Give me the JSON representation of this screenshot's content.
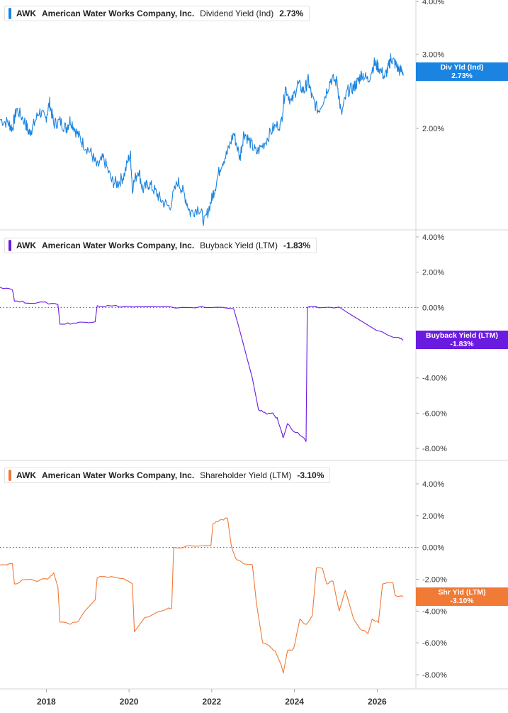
{
  "chart_data": [
    {
      "type": "line",
      "ticker": "AWK",
      "company": "American Water Works Company, Inc.",
      "metric": "Dividend Yield (Ind)",
      "current": "2.73%",
      "tag": [
        "Div Yld (Ind)",
        "2.73%"
      ],
      "color": "#1a84e0",
      "y_ticks": [
        "4.00%",
        "3.00%",
        "2.00%"
      ],
      "y_tick_values": [
        4,
        3,
        2
      ],
      "log_scale": true,
      "ylim": [
        1.1,
        4.0
      ],
      "points": [
        [
          2016.9,
          2.1
        ],
        [
          2017.1,
          2.06
        ],
        [
          2017.2,
          2.0
        ],
        [
          2017.3,
          2.22
        ],
        [
          2017.5,
          2.08
        ],
        [
          2017.6,
          1.95
        ],
        [
          2017.7,
          2.02
        ],
        [
          2017.85,
          2.2
        ],
        [
          2018.0,
          2.1
        ],
        [
          2018.1,
          2.3
        ],
        [
          2018.2,
          2.05
        ],
        [
          2018.35,
          2.08
        ],
        [
          2018.5,
          2.0
        ],
        [
          2018.6,
          2.1
        ],
        [
          2018.75,
          1.96
        ],
        [
          2018.9,
          1.85
        ],
        [
          2019.1,
          1.75
        ],
        [
          2019.25,
          1.62
        ],
        [
          2019.4,
          1.7
        ],
        [
          2019.6,
          1.5
        ],
        [
          2019.75,
          1.48
        ],
        [
          2019.9,
          1.55
        ],
        [
          2020.05,
          1.75
        ],
        [
          2020.1,
          1.45
        ],
        [
          2020.25,
          1.6
        ],
        [
          2020.35,
          1.43
        ],
        [
          2020.5,
          1.48
        ],
        [
          2020.65,
          1.42
        ],
        [
          2020.8,
          1.35
        ],
        [
          2021.0,
          1.3
        ],
        [
          2021.2,
          1.5
        ],
        [
          2021.35,
          1.4
        ],
        [
          2021.5,
          1.26
        ],
        [
          2021.7,
          1.3
        ],
        [
          2021.85,
          1.2
        ],
        [
          2022.0,
          1.34
        ],
        [
          2022.1,
          1.45
        ],
        [
          2022.25,
          1.65
        ],
        [
          2022.4,
          1.75
        ],
        [
          2022.55,
          1.95
        ],
        [
          2022.7,
          1.7
        ],
        [
          2022.8,
          1.96
        ],
        [
          2022.95,
          1.85
        ],
        [
          2023.1,
          1.75
        ],
        [
          2023.3,
          1.85
        ],
        [
          2023.5,
          2.0
        ],
        [
          2023.7,
          2.06
        ],
        [
          2023.8,
          2.5
        ],
        [
          2023.95,
          2.3
        ],
        [
          2024.1,
          2.55
        ],
        [
          2024.25,
          2.45
        ],
        [
          2024.35,
          2.6
        ],
        [
          2024.45,
          2.35
        ],
        [
          2024.6,
          2.2
        ],
        [
          2024.75,
          2.38
        ],
        [
          2024.9,
          2.62
        ],
        [
          2025.05,
          2.58
        ],
        [
          2025.15,
          2.15
        ],
        [
          2025.3,
          2.45
        ],
        [
          2025.45,
          2.5
        ],
        [
          2025.55,
          2.58
        ],
        [
          2025.65,
          2.7
        ],
        [
          2025.8,
          2.6
        ],
        [
          2025.95,
          2.85
        ],
        [
          2026.05,
          2.8
        ],
        [
          2026.2,
          2.65
        ],
        [
          2026.3,
          2.8
        ],
        [
          2026.35,
          2.95
        ],
        [
          2026.45,
          2.85
        ],
        [
          2026.55,
          2.75
        ],
        [
          2026.65,
          2.73
        ]
      ]
    },
    {
      "type": "line",
      "ticker": "AWK",
      "company": "American Water Works Company, Inc.",
      "metric": "Buyback Yield (LTM)",
      "current": "-1.83%",
      "tag": [
        "Buyback Yield (LTM)",
        "-1.83%"
      ],
      "color": "#6a1be0",
      "y_ticks": [
        "4.00%",
        "2.00%",
        "0.00%",
        "-2.00%",
        "-4.00%",
        "-6.00%",
        "-8.00%"
      ],
      "y_tick_values": [
        4,
        2,
        0,
        -2,
        -4,
        -6,
        -8
      ],
      "zero_line": true,
      "ylim": [
        -8,
        4
      ],
      "points": [
        [
          2016.9,
          1.15
        ],
        [
          2017.2,
          1.05
        ],
        [
          2017.25,
          0.35
        ],
        [
          2017.5,
          0.3
        ],
        [
          2018.0,
          0.25
        ],
        [
          2018.3,
          0.2
        ],
        [
          2018.35,
          -0.95
        ],
        [
          2018.6,
          -0.9
        ],
        [
          2018.9,
          -0.85
        ],
        [
          2019.2,
          -0.78
        ],
        [
          2019.25,
          0.1
        ],
        [
          2019.5,
          0.08
        ],
        [
          2019.9,
          0.06
        ],
        [
          2020.2,
          0.02
        ],
        [
          2020.8,
          0.0
        ],
        [
          2021.5,
          0.01
        ],
        [
          2022.0,
          0.0
        ],
        [
          2022.55,
          -0.02
        ],
        [
          2023.0,
          -4.0
        ],
        [
          2023.15,
          -5.8
        ],
        [
          2023.3,
          -6.0
        ],
        [
          2023.5,
          -6.05
        ],
        [
          2023.6,
          -6.3
        ],
        [
          2023.7,
          -7.0
        ],
        [
          2023.75,
          -7.4
        ],
        [
          2023.85,
          -6.6
        ],
        [
          2024.0,
          -7.0
        ],
        [
          2024.2,
          -7.3
        ],
        [
          2024.3,
          -7.6
        ],
        [
          2024.33,
          0.0
        ],
        [
          2024.6,
          0.0
        ],
        [
          2025.1,
          0.0
        ],
        [
          2026.0,
          -1.3
        ],
        [
          2026.55,
          -1.75
        ],
        [
          2026.65,
          -1.83
        ]
      ]
    },
    {
      "type": "line",
      "ticker": "AWK",
      "company": "American Water Works Company, Inc.",
      "metric": "Shareholder Yield (LTM)",
      "current": "-3.10%",
      "tag": [
        "Shr Yld (LTM)",
        "-3.10%"
      ],
      "color": "#f07a36",
      "y_ticks": [
        "4.00%",
        "2.00%",
        "0.00%",
        "-2.00%",
        "-4.00%",
        "-6.00%",
        "-8.00%"
      ],
      "y_tick_values": [
        4,
        2,
        0,
        -2,
        -4,
        -6,
        -8
      ],
      "zero_line": true,
      "ylim": [
        -8,
        4
      ],
      "points": [
        [
          2016.9,
          -1.1
        ],
        [
          2017.2,
          -1.05
        ],
        [
          2017.25,
          -2.3
        ],
        [
          2017.5,
          -2.0
        ],
        [
          2017.8,
          -2.1
        ],
        [
          2018.05,
          -1.95
        ],
        [
          2018.2,
          -1.6
        ],
        [
          2018.3,
          -2.5
        ],
        [
          2018.35,
          -4.7
        ],
        [
          2018.6,
          -4.8
        ],
        [
          2018.8,
          -4.6
        ],
        [
          2018.95,
          -4.0
        ],
        [
          2019.2,
          -3.3
        ],
        [
          2019.25,
          -1.9
        ],
        [
          2019.5,
          -1.85
        ],
        [
          2019.9,
          -2.0
        ],
        [
          2020.1,
          -2.3
        ],
        [
          2020.15,
          -5.3
        ],
        [
          2020.4,
          -4.4
        ],
        [
          2020.7,
          -4.1
        ],
        [
          2020.95,
          -3.85
        ],
        [
          2021.05,
          -3.8
        ],
        [
          2021.1,
          0.0
        ],
        [
          2021.5,
          0.05
        ],
        [
          2022.0,
          0.15
        ],
        [
          2022.05,
          1.5
        ],
        [
          2022.2,
          1.7
        ],
        [
          2022.4,
          1.85
        ],
        [
          2022.5,
          0.0
        ],
        [
          2022.6,
          -0.7
        ],
        [
          2022.8,
          -1.0
        ],
        [
          2023.0,
          -1.05
        ],
        [
          2023.1,
          -3.5
        ],
        [
          2023.25,
          -6.0
        ],
        [
          2023.4,
          -6.2
        ],
        [
          2023.55,
          -6.5
        ],
        [
          2023.7,
          -7.4
        ],
        [
          2023.75,
          -7.9
        ],
        [
          2023.85,
          -6.5
        ],
        [
          2024.0,
          -6.4
        ],
        [
          2024.15,
          -4.5
        ],
        [
          2024.3,
          -4.9
        ],
        [
          2024.45,
          -4.3
        ],
        [
          2024.55,
          -1.3
        ],
        [
          2024.7,
          -1.35
        ],
        [
          2024.8,
          -2.3
        ],
        [
          2024.95,
          -2.1
        ],
        [
          2025.1,
          -4.0
        ],
        [
          2025.25,
          -2.7
        ],
        [
          2025.45,
          -4.5
        ],
        [
          2025.6,
          -5.1
        ],
        [
          2025.8,
          -5.4
        ],
        [
          2025.9,
          -4.5
        ],
        [
          2026.05,
          -4.7
        ],
        [
          2026.15,
          -2.3
        ],
        [
          2026.4,
          -2.2
        ],
        [
          2026.45,
          -3.0
        ],
        [
          2026.65,
          -3.1
        ]
      ]
    }
  ],
  "x_axis": {
    "ticks": [
      "2018",
      "2020",
      "2022",
      "2024",
      "2026"
    ],
    "tick_values": [
      2018,
      2020,
      2022,
      2024,
      2026
    ],
    "range": [
      2016.9,
      2026.75
    ]
  }
}
